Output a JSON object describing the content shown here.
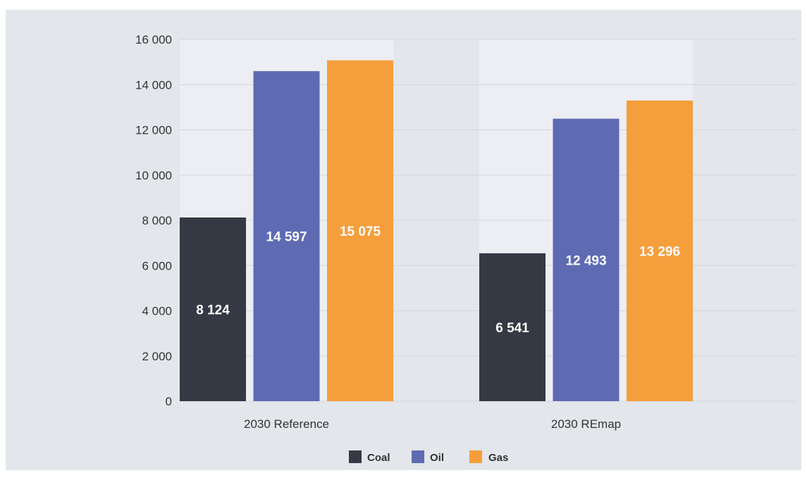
{
  "chart_data": {
    "type": "bar",
    "categories": [
      "2030 Reference",
      "2030 REmap"
    ],
    "series": [
      {
        "name": "Coal",
        "color": "#353943",
        "values": [
          8124,
          6541
        ],
        "labels": [
          "8 124",
          "6 541"
        ]
      },
      {
        "name": "Oil",
        "color": "#5e6bb3",
        "values": [
          14597,
          12493
        ],
        "labels": [
          "14 597",
          "12 493"
        ]
      },
      {
        "name": "Gas",
        "color": "#f59e3c",
        "values": [
          15075,
          13296
        ],
        "labels": [
          "15 075",
          "13 296"
        ]
      }
    ],
    "y_ticks": [
      0,
      2000,
      4000,
      6000,
      8000,
      10000,
      12000,
      14000,
      16000
    ],
    "y_tick_labels": [
      "0",
      "2 000",
      "4 000",
      "6 000",
      "8 000",
      "10 000",
      "12 000",
      "14 000",
      "16 000"
    ],
    "ylim": [
      0,
      16000
    ],
    "grid": true,
    "legend_position": "bottom-center",
    "colors": {
      "panel_background": "#e3e6ea",
      "plot_band": "#eceef3",
      "gridline": "#d3d6dc"
    }
  }
}
